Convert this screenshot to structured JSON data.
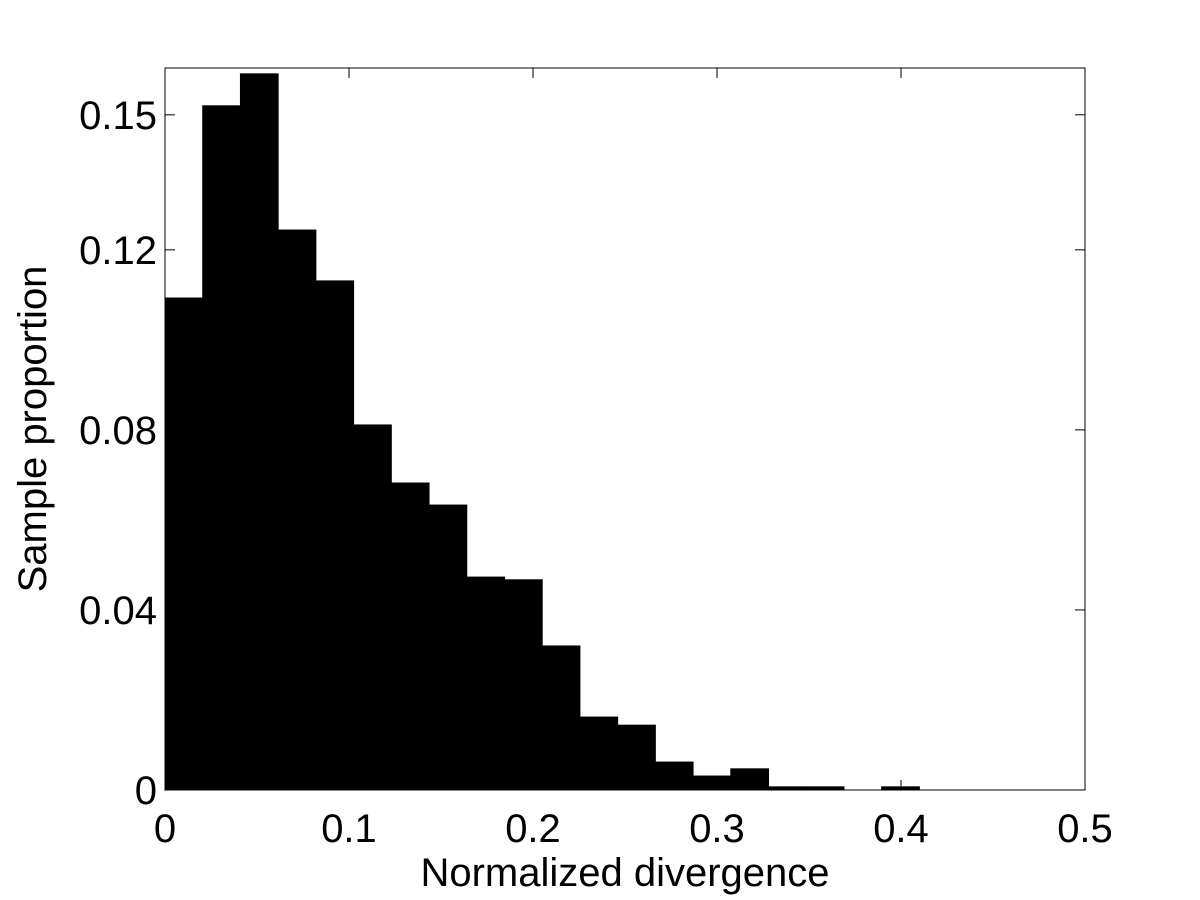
{
  "chart_data": {
    "type": "histogram",
    "xlabel": "Normalized divergence",
    "ylabel": "Sample proportion",
    "bins": [
      0,
      0.0205,
      0.041,
      0.0615,
      0.082,
      0.1025,
      0.123,
      0.1435,
      0.164,
      0.1845,
      0.205,
      0.2255,
      0.246,
      0.2665,
      0.287,
      0.3075,
      0.328,
      0.3485,
      0.369,
      0.3895,
      0.41
    ],
    "counts": [
      0.1093,
      0.152,
      0.1591,
      0.1244,
      0.1131,
      0.0811,
      0.0682,
      0.0633,
      0.0473,
      0.0467,
      0.032,
      0.0162,
      0.0144,
      0.0062,
      0.0031,
      0.0047,
      0.0007,
      0.0007,
      0,
      0.0007
    ],
    "color": "#000000",
    "xlim": [
      0,
      0.5
    ],
    "xticks": [
      0,
      0.1,
      0.2,
      0.3,
      0.4,
      0.5
    ],
    "ylim": [
      0,
      0.1604
    ],
    "yticks": [
      0,
      0.04,
      0.08,
      0.12,
      0.15
    ],
    "grid": false
  }
}
